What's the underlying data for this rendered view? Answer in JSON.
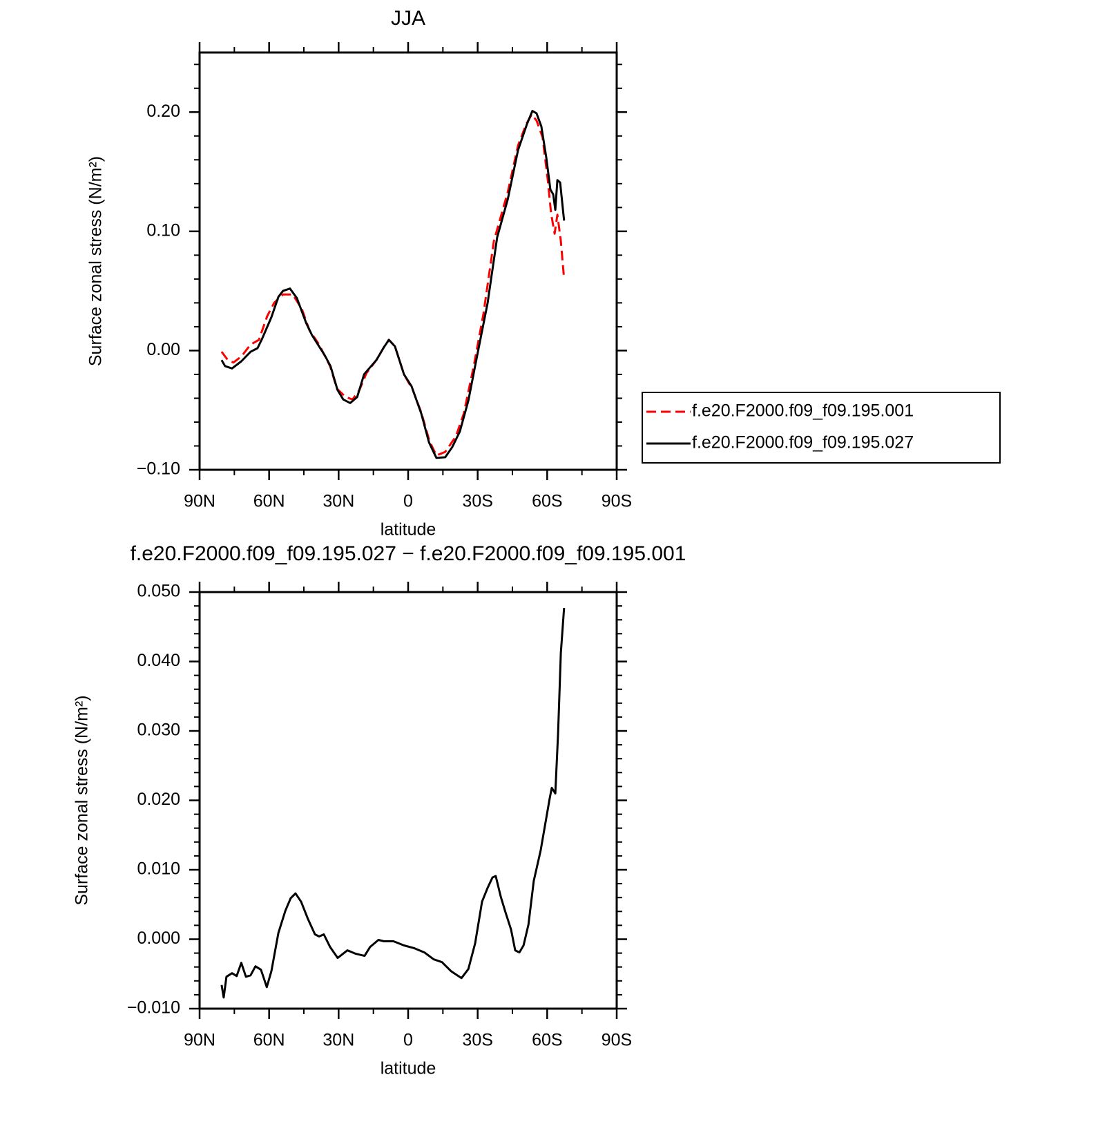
{
  "chart_data": [
    {
      "type": "line",
      "title": "JJA",
      "xlabel": "latitude",
      "ylabel": "Surface zonal stress (N/m²)",
      "xlim": [
        90,
        -90
      ],
      "xticks": [
        {
          "value": 90,
          "label": "90N"
        },
        {
          "value": 60,
          "label": "60N"
        },
        {
          "value": 30,
          "label": "30N"
        },
        0,
        {
          "value": -30,
          "label": "30S"
        },
        {
          "value": -60,
          "label": "60S"
        },
        {
          "value": -90,
          "label": "90S"
        }
      ],
      "ylim": [
        -0.1,
        0.25
      ],
      "yticks": [
        {
          "value": -0.1,
          "label": "−0.10"
        },
        {
          "value": 0,
          "label": "0.00"
        },
        {
          "value": 0.1,
          "label": "0.10"
        },
        {
          "value": 0.2,
          "label": "0.20"
        }
      ],
      "legend": "right",
      "series": [
        {
          "name": "f.e20.F2000.f09_f09.195.001",
          "color": "#ff0000",
          "linestyle": "dashed",
          "x": [
            80.5,
            77.8,
            75.4,
            72,
            68,
            64.4,
            60.8,
            57.8,
            54,
            49.8,
            45.9,
            42.6,
            38.4,
            33.7,
            30.7,
            27,
            24,
            21,
            18,
            13.7,
            10.4,
            8.3,
            5.7,
            1.8,
            -2,
            -5.7,
            -9.2,
            -12.2,
            -16,
            -20.6,
            -24,
            -28.3,
            -32.5,
            -37,
            -43,
            -47.4,
            -51,
            -53.3,
            -55.4,
            -58,
            -60.2,
            -61.7,
            -63.2,
            -64.4,
            -65.9,
            -67.3
          ],
          "values": [
            -0.001,
            -0.008,
            -0.01,
            -0.005,
            0.005,
            0.009,
            0.029,
            0.04,
            0.047,
            0.047,
            0.035,
            0.017,
            0.005,
            -0.013,
            -0.032,
            -0.039,
            -0.041,
            -0.033,
            -0.019,
            -0.008,
            0.003,
            0.009,
            0.0035,
            -0.02,
            -0.033,
            -0.052,
            -0.076,
            -0.088,
            -0.085,
            -0.072,
            -0.053,
            -0.013,
            0.031,
            0.092,
            0.133,
            0.172,
            0.19,
            0.198,
            0.193,
            0.179,
            0.144,
            0.115,
            0.098,
            0.114,
            0.092,
            0.06
          ]
        },
        {
          "name": "f.e20.F2000.f09_f09.195.027",
          "color": "#000000",
          "linestyle": "solid",
          "x": [
            80.5,
            79,
            76,
            72,
            68,
            65,
            63,
            59,
            56,
            54,
            51,
            48,
            44,
            41.5,
            36,
            33.5,
            30.5,
            28,
            25,
            22,
            19,
            13.7,
            10.4,
            8.3,
            5.7,
            1.8,
            -1.5,
            -5.7,
            -9,
            -12.2,
            -16,
            -19,
            -22.3,
            -26,
            -29.5,
            -34.3,
            -38.4,
            -43,
            -47.4,
            -51.3,
            -53.6,
            -55.4,
            -57.5,
            -59.6,
            -61.4,
            -62.6,
            -63.5,
            -64.4,
            -65.6,
            -67.3
          ],
          "values": [
            -0.008,
            -0.013,
            -0.015,
            -0.009,
            -0.001,
            0.002,
            0.01,
            0.028,
            0.045,
            0.05,
            0.052,
            0.044,
            0.023,
            0.013,
            -0.004,
            -0.013,
            -0.033,
            -0.041,
            -0.044,
            -0.039,
            -0.02,
            -0.008,
            0.003,
            0.009,
            0.0035,
            -0.02,
            -0.03,
            -0.053,
            -0.077,
            -0.09,
            -0.0895,
            -0.081,
            -0.068,
            -0.042,
            -0.007,
            0.04,
            0.095,
            0.127,
            0.168,
            0.19,
            0.201,
            0.199,
            0.188,
            0.162,
            0.135,
            0.131,
            0.118,
            0.143,
            0.141,
            0.109
          ]
        }
      ]
    },
    {
      "type": "line",
      "title": "f.e20.F2000.f09_f09.195.027 − f.e20.F2000.f09_f09.195.001",
      "xlabel": "latitude",
      "ylabel": "Surface zonal stress (N/m²)",
      "xlim": [
        90,
        -90
      ],
      "xticks": [
        {
          "value": 90,
          "label": "90N"
        },
        {
          "value": 60,
          "label": "60N"
        },
        {
          "value": 30,
          "label": "30N"
        },
        0,
        {
          "value": -30,
          "label": "30S"
        },
        {
          "value": -60,
          "label": "60S"
        },
        {
          "value": -90,
          "label": "90S"
        }
      ],
      "ylim": [
        -0.01,
        0.05
      ],
      "yticks": [
        {
          "value": -0.01,
          "label": "−0.010"
        },
        {
          "value": 0,
          "label": "0.000"
        },
        {
          "value": 0.01,
          "label": "0.010"
        },
        {
          "value": 0.02,
          "label": "0.020"
        },
        {
          "value": 0.03,
          "label": "0.030"
        },
        {
          "value": 0.04,
          "label": "0.040"
        },
        {
          "value": 0.05,
          "label": "0.050"
        }
      ],
      "series": [
        {
          "color": "#000000",
          "linestyle": "solid",
          "x": [
            80.5,
            79.6,
            78.4,
            76,
            74,
            72,
            70,
            68,
            65.9,
            63.5,
            61,
            59,
            56,
            53,
            50.7,
            48.6,
            46.2,
            43.2,
            40.2,
            38.4,
            36.4,
            33.7,
            30.4,
            26.2,
            22.6,
            18.8,
            16.4,
            12.8,
            10.4,
            6.3,
            1.8,
            -2.7,
            -7,
            -11,
            -14.6,
            -18.5,
            -23,
            -26,
            -28.9,
            -31.9,
            -34.3,
            -36.4,
            -37.8,
            -40,
            -42,
            -44.4,
            -46.2,
            -48,
            -49.8,
            -51.9,
            -54.2,
            -57.2,
            -61.1,
            -62,
            -63.5,
            -64.7,
            -65.9,
            -67.3
          ],
          "values": [
            -0.0066,
            -0.0084,
            -0.0054,
            -0.0049,
            -0.0053,
            -0.0034,
            -0.0054,
            -0.0052,
            -0.0039,
            -0.0044,
            -0.0069,
            -0.0046,
            0.0009,
            0.0041,
            0.0059,
            0.0066,
            0.0054,
            0.0029,
            0.0007,
            0.0004,
            0.0007,
            -0.0011,
            -0.0027,
            -0.0016,
            -0.0021,
            -0.0024,
            -0.0011,
            -0.0001,
            -0.0003,
            -0.0003,
            -0.0009,
            -0.0013,
            -0.0019,
            -0.0029,
            -0.0033,
            -0.0046,
            -0.0056,
            -0.0043,
            -0.0006,
            0.0054,
            0.0074,
            0.0089,
            0.0091,
            0.0061,
            0.0039,
            0.0014,
            -0.0016,
            -0.0019,
            -0.0009,
            0.0021,
            0.0084,
            0.0128,
            0.0203,
            0.0218,
            0.021,
            0.0296,
            0.0412,
            0.0477
          ]
        }
      ]
    }
  ]
}
